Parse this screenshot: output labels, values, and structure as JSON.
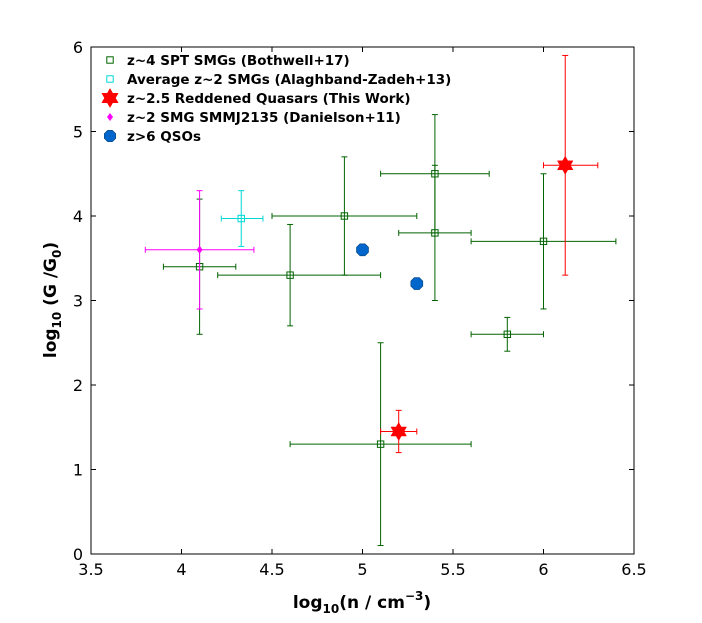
{
  "chart_data": {
    "type": "scatter",
    "xlabel": "log10(n / cm-3)",
    "ylabel": "log10 (G /G0)",
    "xlim": [
      3.5,
      6.5
    ],
    "ylim": [
      0,
      6
    ],
    "xticks": [
      3.5,
      4,
      4.5,
      5,
      5.5,
      6,
      6.5
    ],
    "yticks": [
      0,
      1,
      2,
      3,
      4,
      5,
      6
    ],
    "xtick_labels": [
      "3.5",
      "4",
      "4.5",
      "5",
      "5.5",
      "6",
      "6.5"
    ],
    "ytick_labels": [
      "0",
      "1",
      "2",
      "3",
      "4",
      "5",
      "6"
    ],
    "grid": false,
    "legend_position": "top-left",
    "series": [
      {
        "name": "z~4 SPT SMGs (Bothwell+17)",
        "marker": "open-square",
        "color": "#006400",
        "points": [
          {
            "x": 4.1,
            "y": 3.4,
            "xlo": 3.9,
            "xhi": 4.3,
            "ylo": 2.6,
            "yhi": 4.2
          },
          {
            "x": 4.6,
            "y": 3.3,
            "xlo": 4.2,
            "xhi": 5.1,
            "ylo": 2.7,
            "yhi": 3.9
          },
          {
            "x": 4.9,
            "y": 4.0,
            "xlo": 4.5,
            "xhi": 5.3,
            "ylo": 3.3,
            "yhi": 4.7
          },
          {
            "x": 5.1,
            "y": 1.3,
            "xlo": 4.6,
            "xhi": 5.6,
            "ylo": 0.1,
            "yhi": 2.5
          },
          {
            "x": 5.4,
            "y": 4.5,
            "xlo": 5.1,
            "xhi": 5.7,
            "ylo": 3.8,
            "yhi": 5.2
          },
          {
            "x": 5.4,
            "y": 3.8,
            "xlo": 5.2,
            "xhi": 5.6,
            "ylo": 3.0,
            "yhi": 4.6
          },
          {
            "x": 5.8,
            "y": 2.6,
            "xlo": 5.6,
            "xhi": 6.0,
            "ylo": 2.4,
            "yhi": 2.8
          },
          {
            "x": 6.0,
            "y": 3.7,
            "xlo": 5.6,
            "xhi": 6.4,
            "ylo": 2.9,
            "yhi": 4.5
          }
        ]
      },
      {
        "name": "Average z~2 SMGs (Alaghband-Zadeh+13)",
        "marker": "open-square",
        "color": "#00d8d8",
        "points": [
          {
            "x": 4.33,
            "y": 3.97,
            "xlo": 4.22,
            "xhi": 4.45,
            "ylo": 3.64,
            "yhi": 4.3
          }
        ]
      },
      {
        "name": "z~2.5 Reddened Quasars (This Work)",
        "marker": "hexagram",
        "color": "#ff0000",
        "points": [
          {
            "x": 5.2,
            "y": 1.45,
            "xlo": 5.1,
            "xhi": 5.3,
            "ylo": 1.2,
            "yhi": 1.7
          },
          {
            "x": 6.12,
            "y": 4.6,
            "xlo": 6.0,
            "xhi": 6.3,
            "ylo": 3.3,
            "yhi": 5.9
          }
        ]
      },
      {
        "name": "z~2 SMG SMMJ2135 (Danielson+11)",
        "marker": "diamond",
        "color": "#ff00ff",
        "points": [
          {
            "x": 4.1,
            "y": 3.6,
            "xlo": 3.8,
            "xhi": 4.4,
            "ylo": 2.9,
            "yhi": 4.3
          }
        ]
      },
      {
        "name": "z>6 QSOs",
        "marker": "filled-octagon",
        "color": "#0066cc",
        "points": [
          {
            "x": 5.0,
            "y": 3.6
          },
          {
            "x": 5.3,
            "y": 3.2
          }
        ]
      }
    ]
  }
}
